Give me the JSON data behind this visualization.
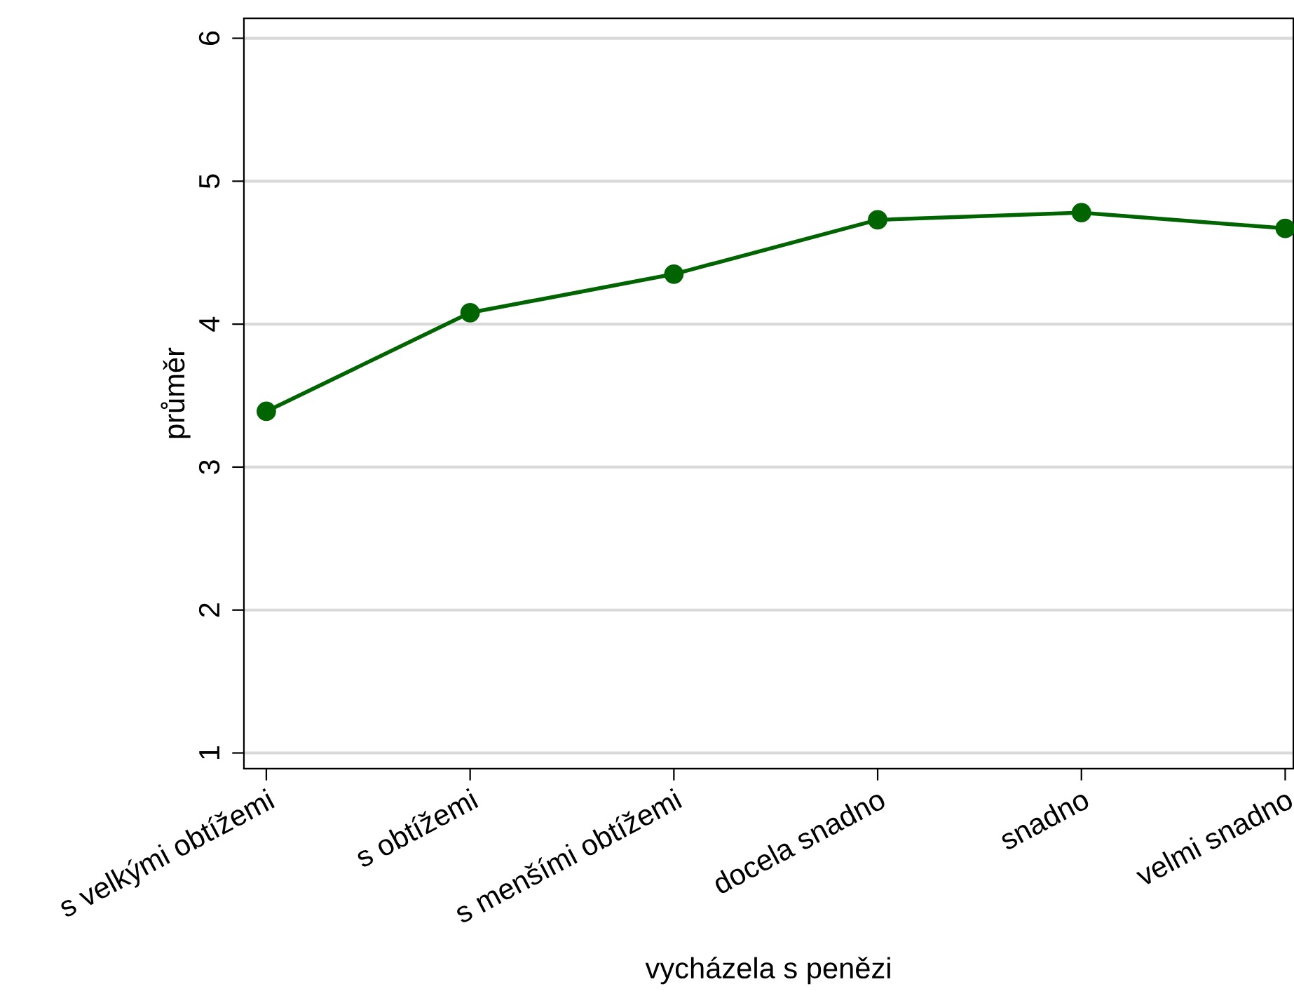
{
  "chart_data": {
    "type": "line",
    "xlabel": "vycházela s penězi",
    "ylabel": "průměr",
    "categories": [
      "s velkými obtížemi",
      "s obtížemi",
      "s menšími obtížemi",
      "docela snadno",
      "snadno",
      "velmi snadno"
    ],
    "series": [
      {
        "color": "#006400",
        "values": [
          3.39,
          4.08,
          4.35,
          4.73,
          4.78,
          4.67
        ]
      }
    ],
    "ylim": [
      0.89,
      6.14
    ],
    "yticks": [
      1,
      2,
      3,
      4,
      5,
      6
    ],
    "grid": "y",
    "marker": "circle",
    "line_style": "solid"
  }
}
